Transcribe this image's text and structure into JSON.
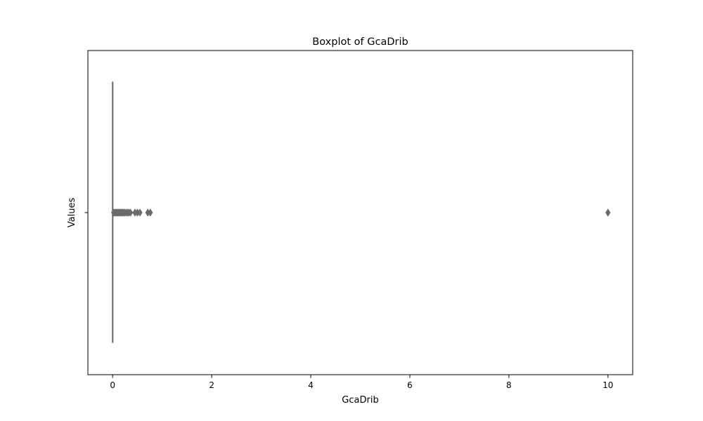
{
  "chart_data": {
    "type": "boxplot",
    "title": "Boxplot of GcaDrib",
    "xlabel": "GcaDrib",
    "ylabel": "Values",
    "xlim": [
      -0.5,
      10.5
    ],
    "x_ticks": [
      0,
      2,
      4,
      6,
      8,
      10
    ],
    "x_tick_labels": [
      "0",
      "2",
      "4",
      "6",
      "8",
      "10"
    ],
    "grid": false,
    "legend": "none",
    "series": [
      {
        "box": {
          "min": 0,
          "q1": 0,
          "median": 0,
          "q3": 0,
          "max": 0
        },
        "outliers": [
          0.02,
          0.04,
          0.06,
          0.08,
          0.1,
          0.12,
          0.14,
          0.16,
          0.18,
          0.2,
          0.22,
          0.24,
          0.27,
          0.3,
          0.33,
          0.36,
          0.45,
          0.5,
          0.55,
          0.71,
          0.76,
          10.0
        ]
      }
    ],
    "colors": {
      "box_line": "#6b6b6b",
      "outlier_fill": "#6b6b6b",
      "axes": "#000000"
    }
  }
}
